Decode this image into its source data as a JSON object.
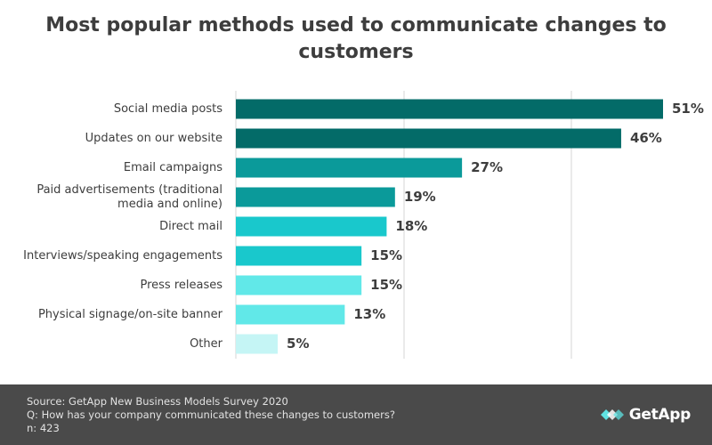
{
  "chart_data": {
    "type": "bar",
    "orientation": "horizontal",
    "title": "Most popular methods used to communicate changes to customers",
    "categories": [
      "Social media posts",
      "Updates on our website",
      "Email campaigns",
      "Paid advertisements (traditional media and online)",
      "Direct mail",
      "Interviews/speaking engagements",
      "Press releases",
      "Physical signage/on-site banner",
      "Other"
    ],
    "category_lines": [
      [
        "Social media posts"
      ],
      [
        "Updates on our website"
      ],
      [
        "Email campaigns"
      ],
      [
        "Paid advertisements (traditional",
        "media and online)"
      ],
      [
        "Direct mail"
      ],
      [
        "Interviews/speaking engagements"
      ],
      [
        "Press releases"
      ],
      [
        "Physical signage/on-site banner"
      ],
      [
        "Other"
      ]
    ],
    "values": [
      51,
      46,
      27,
      19,
      18,
      15,
      15,
      13,
      5
    ],
    "labels": [
      "51%",
      "46%",
      "27%",
      "19%",
      "18%",
      "15%",
      "15%",
      "13%",
      "5%"
    ],
    "bar_colors": [
      "#036b68",
      "#036b68",
      "#0b9a9a",
      "#0b9a9a",
      "#19c8cc",
      "#19c8cc",
      "#61e8e8",
      "#61e8e8",
      "#c5f5f5"
    ],
    "xlim": [
      0,
      51
    ],
    "xlabel": "",
    "ylabel": "",
    "grid": true
  },
  "footer": {
    "source": "Source: GetApp New Business Models Survey 2020",
    "question": "Q: How has your company communicated these changes to customers?",
    "n": "n: 423"
  },
  "brand": {
    "name": "GetApp",
    "icon": "getapp-logo-icon"
  },
  "colors": {
    "footer_bg": "#4a4a4a",
    "title": "#3d3d3d",
    "label": "#3d3d3d",
    "grid": "#d4d4d4",
    "logo_accent": "#5fe3e3"
  }
}
